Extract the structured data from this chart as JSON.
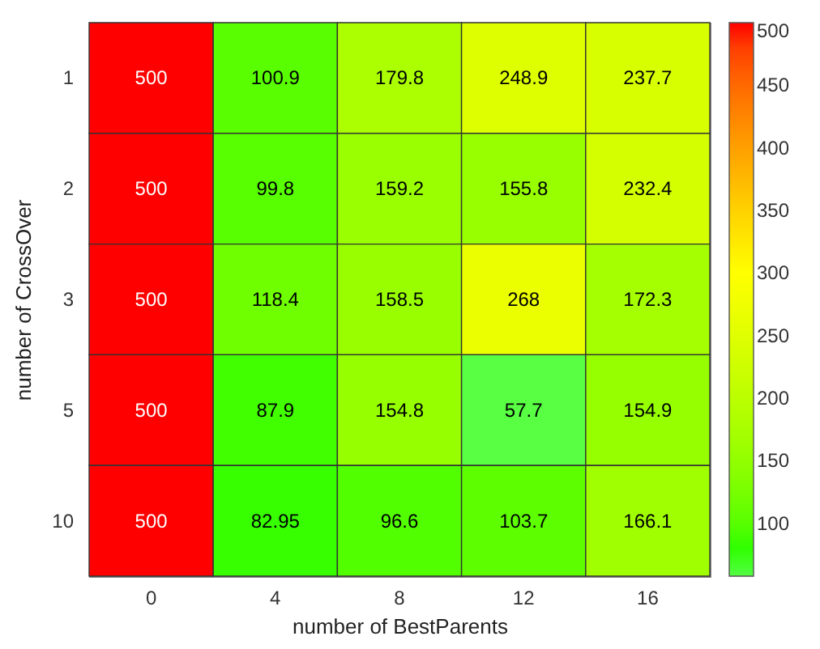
{
  "chart_data": {
    "type": "heatmap",
    "xlabel": "number of BestParents",
    "ylabel": "number of CrossOver",
    "categories": [
      "0",
      "4",
      "8",
      "12",
      "16"
    ],
    "y_categories": [
      "1",
      "2",
      "3",
      "5",
      "10"
    ],
    "cells": [
      [
        500,
        100.9,
        179.8,
        248.9,
        237.7
      ],
      [
        500,
        99.8,
        159.2,
        155.8,
        232.4
      ],
      [
        500,
        118.4,
        158.5,
        268,
        172.3
      ],
      [
        500,
        87.9,
        154.8,
        57.7,
        154.9
      ],
      [
        500,
        82.95,
        96.6,
        103.7,
        166.1
      ]
    ],
    "data_labels": true,
    "clim": [
      57.7,
      500
    ],
    "cticks": [
      100,
      150,
      200,
      250,
      300,
      350,
      400,
      450,
      500
    ]
  }
}
